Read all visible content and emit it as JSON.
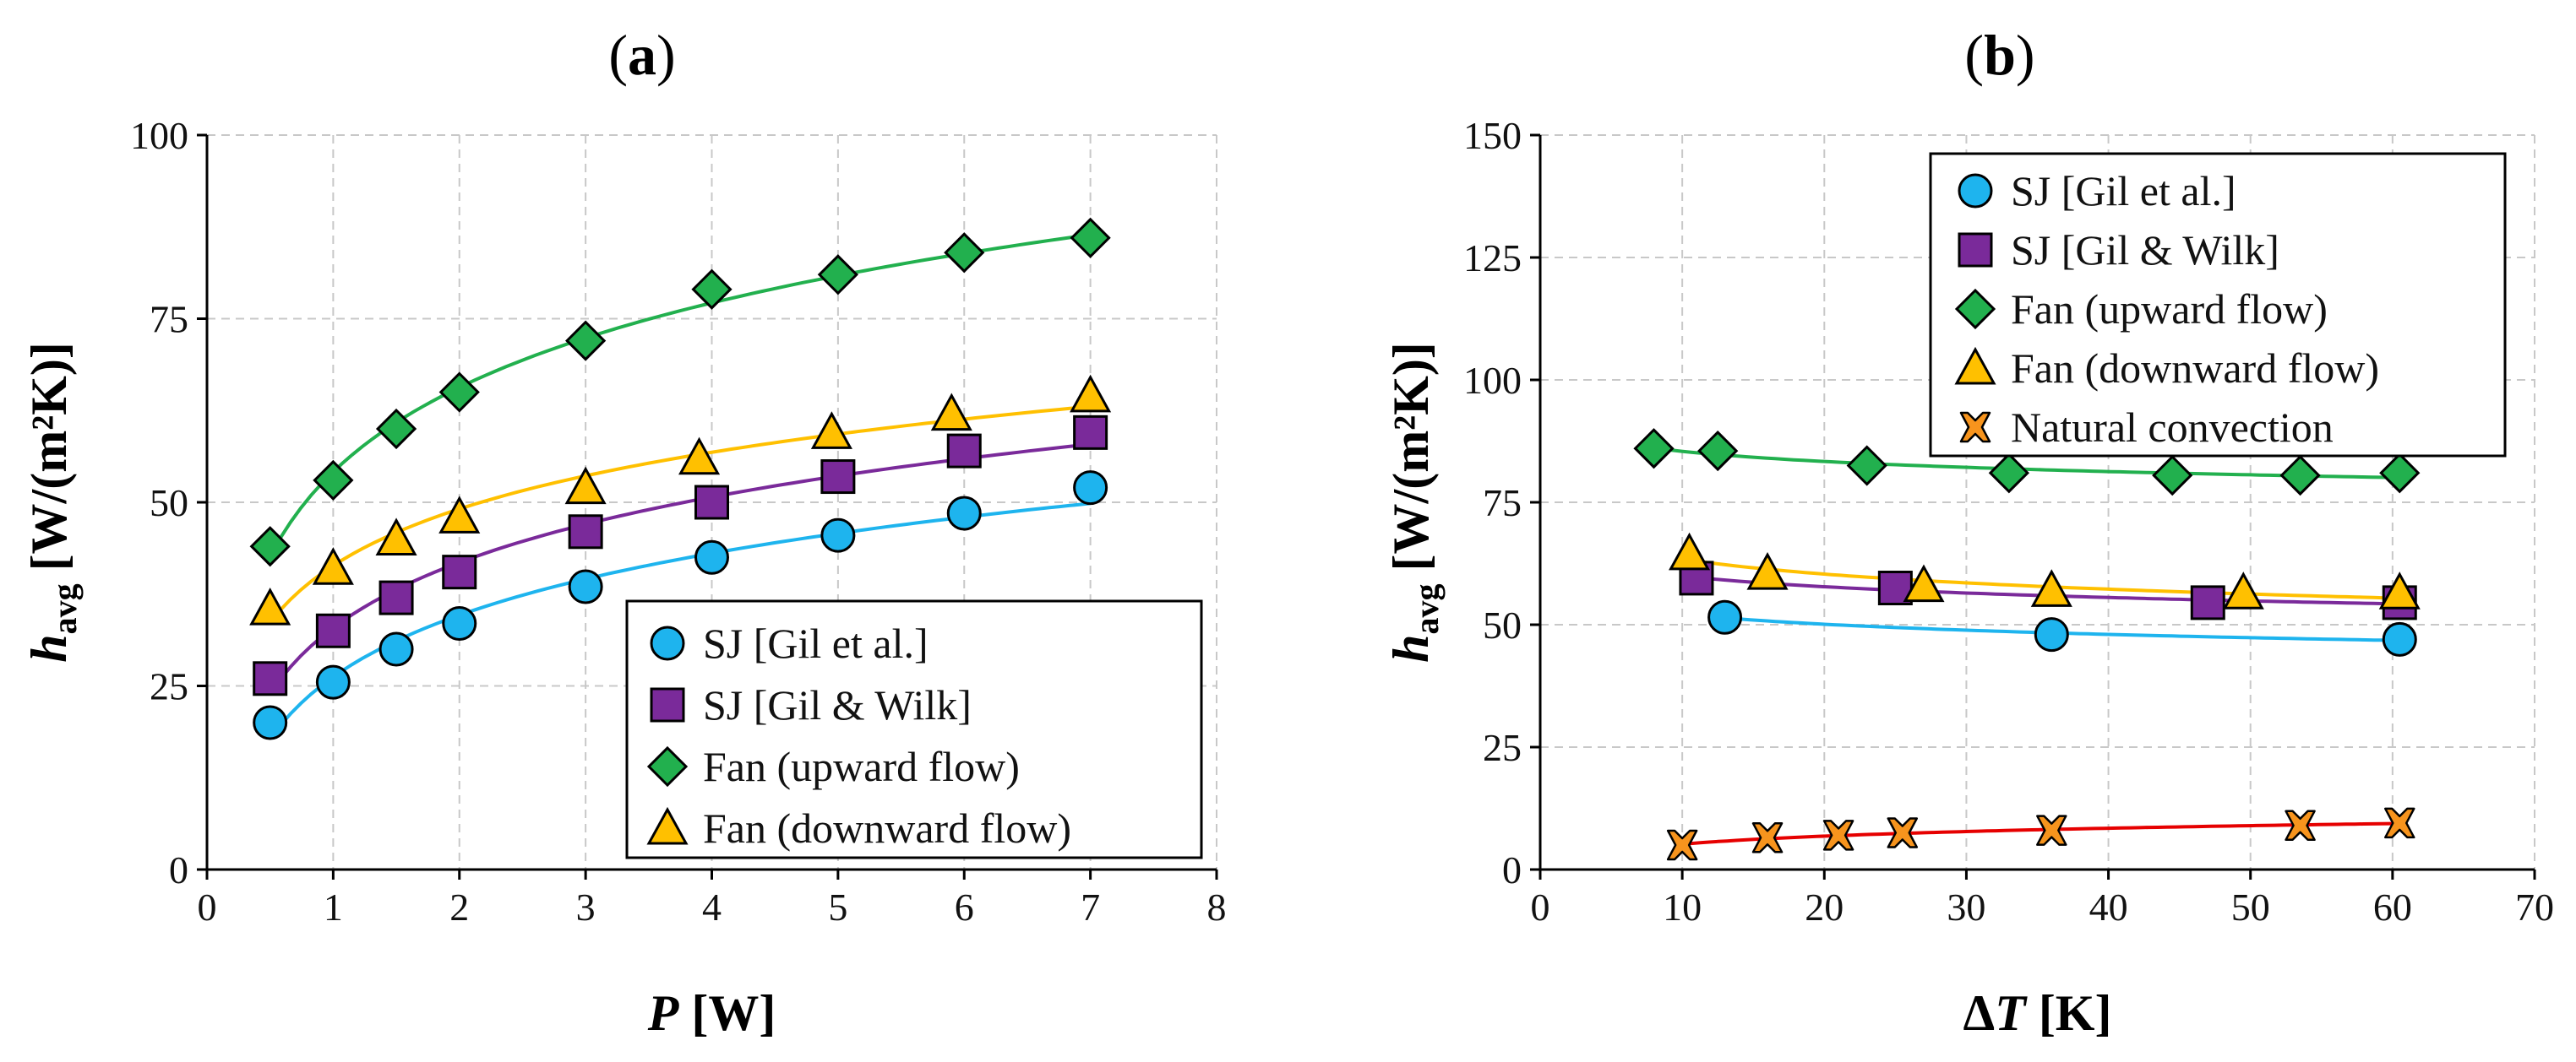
{
  "chart_data": [
    {
      "type": "scatter",
      "panel_label": "(a)",
      "xlabel": {
        "symbol": "P",
        "unit": " [W]"
      },
      "ylabel": {
        "symbol": "h",
        "subscript": "avg",
        "unit": " [W/(m²K)]"
      },
      "xlim": [
        0,
        8
      ],
      "ylim": [
        0,
        100
      ],
      "xticks": [
        0,
        1,
        2,
        3,
        4,
        5,
        6,
        7,
        8
      ],
      "yticks": [
        0,
        25,
        50,
        75,
        100
      ],
      "grid": true,
      "legend_position": "bottom-right",
      "series": [
        {
          "name": "SJ [Gil et al.]",
          "marker": "circle",
          "color": "#1eb4ee",
          "line_color": "#1eb4ee",
          "x": [
            0.5,
            1.0,
            1.5,
            2.0,
            3.0,
            4.0,
            5.0,
            6.0,
            7.0
          ],
          "y": [
            20,
            25.5,
            30,
            33.5,
            38.5,
            42.5,
            45.5,
            48.5,
            52
          ]
        },
        {
          "name": "SJ [Gil & Wilk]",
          "marker": "square",
          "color": "#7a2a9a",
          "line_color": "#7a2a9a",
          "x": [
            0.5,
            1.0,
            1.5,
            2.0,
            3.0,
            4.0,
            5.0,
            6.0,
            7.0
          ],
          "y": [
            26,
            32.5,
            37,
            40.5,
            46,
            50,
            53.5,
            57,
            59.5
          ]
        },
        {
          "name": "Fan (upward flow)",
          "marker": "diamond",
          "color": "#22b04e",
          "line_color": "#22b04e",
          "x": [
            0.5,
            1.0,
            1.5,
            2.0,
            3.0,
            4.0,
            5.0,
            6.0,
            7.0
          ],
          "y": [
            44,
            53,
            60,
            65,
            72,
            79,
            81,
            84,
            86
          ]
        },
        {
          "name": "Fan (downward flow)",
          "marker": "triangle",
          "color": "#ffc000",
          "line_color": "#ffc000",
          "x": [
            0.5,
            1.0,
            1.5,
            2.0,
            3.0,
            3.9,
            4.95,
            5.9,
            7.0
          ],
          "y": [
            35.5,
            41,
            45,
            48,
            52,
            56,
            59.5,
            62,
            64.5
          ]
        }
      ]
    },
    {
      "type": "scatter",
      "panel_label": "(b)",
      "xlabel": {
        "symbol": "ΔT",
        "unit": " [K]"
      },
      "ylabel": {
        "symbol": "h",
        "subscript": "avg",
        "unit": " [W/(m²K)]"
      },
      "xlim": [
        0,
        70
      ],
      "ylim": [
        0,
        150
      ],
      "xticks": [
        0,
        10,
        20,
        30,
        40,
        50,
        60,
        70
      ],
      "yticks": [
        0,
        25,
        50,
        75,
        100,
        125,
        150
      ],
      "grid": true,
      "legend_position": "top-right",
      "series": [
        {
          "name": "SJ [Gil et al.]",
          "marker": "circle",
          "color": "#1eb4ee",
          "line_color": "#1eb4ee",
          "x": [
            13,
            36,
            60.5
          ],
          "y": [
            51.5,
            48,
            47
          ]
        },
        {
          "name": "SJ [Gil & Wilk]",
          "marker": "square",
          "color": "#7a2a9a",
          "line_color": "#7a2a9a",
          "x": [
            11,
            25,
            47,
            60.5
          ],
          "y": [
            59.5,
            57.5,
            54.5,
            54.5
          ]
        },
        {
          "name": "Fan (upward flow)",
          "marker": "diamond",
          "color": "#22b04e",
          "line_color": "#22b04e",
          "x": [
            8,
            12.5,
            23,
            33,
            44.5,
            53.5,
            60.5
          ],
          "y": [
            86,
            85.5,
            82.5,
            81,
            80.5,
            80.5,
            81
          ]
        },
        {
          "name": "Fan (downward flow)",
          "marker": "triangle",
          "color": "#ffc000",
          "line_color": "#ffc000",
          "x": [
            10.5,
            16,
            27,
            36,
            49.5,
            60.5
          ],
          "y": [
            64.5,
            60.5,
            58,
            57,
            56.5,
            56.5
          ]
        },
        {
          "name": "Natural convection",
          "marker": "x",
          "color": "#f7941d",
          "line_color": "#e60000",
          "x": [
            10,
            16,
            21,
            25.5,
            36,
            53.5,
            60.5
          ],
          "y": [
            5,
            6.5,
            7,
            7.5,
            8,
            9,
            9.5
          ]
        }
      ]
    }
  ]
}
